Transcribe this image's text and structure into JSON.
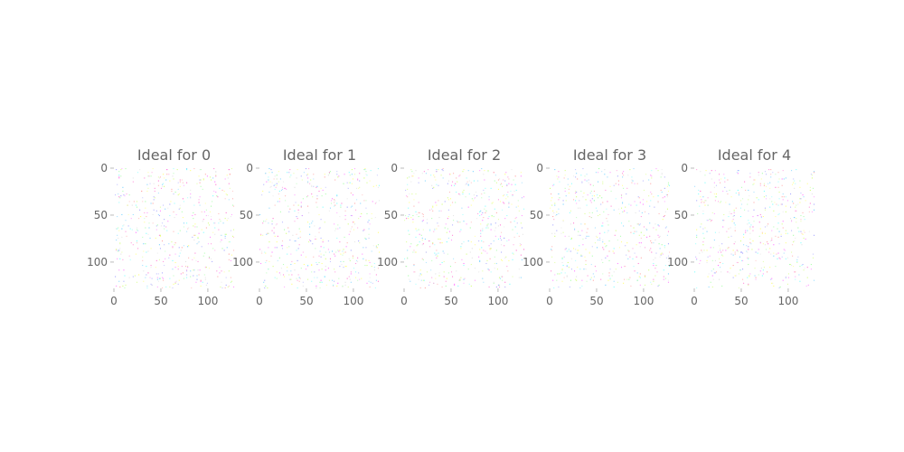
{
  "chart_data": [
    {
      "type": "heatmap",
      "title": "Ideal for 0",
      "image_size": [
        128,
        128
      ],
      "x_ticks": [
        "0",
        "50",
        "100"
      ],
      "y_ticks": [
        "0",
        "50",
        "100"
      ],
      "xlim": [
        0,
        128
      ],
      "ylim": [
        128,
        0
      ],
      "grid": false,
      "seed": 11
    },
    {
      "type": "heatmap",
      "title": "Ideal for 1",
      "image_size": [
        128,
        128
      ],
      "x_ticks": [
        "0",
        "50",
        "100"
      ],
      "y_ticks": [
        "0",
        "50",
        "100"
      ],
      "xlim": [
        0,
        128
      ],
      "ylim": [
        128,
        0
      ],
      "grid": false,
      "seed": 23
    },
    {
      "type": "heatmap",
      "title": "Ideal for 2",
      "image_size": [
        128,
        128
      ],
      "x_ticks": [
        "0",
        "50",
        "100"
      ],
      "y_ticks": [
        "0",
        "50",
        "100"
      ],
      "xlim": [
        0,
        128
      ],
      "ylim": [
        128,
        0
      ],
      "grid": false,
      "seed": 37
    },
    {
      "type": "heatmap",
      "title": "Ideal for 3",
      "image_size": [
        128,
        128
      ],
      "x_ticks": [
        "0",
        "50",
        "100"
      ],
      "y_ticks": [
        "0",
        "50",
        "100"
      ],
      "xlim": [
        0,
        128
      ],
      "ylim": [
        128,
        0
      ],
      "grid": false,
      "seed": 41
    },
    {
      "type": "heatmap",
      "title": "Ideal for 4",
      "image_size": [
        128,
        128
      ],
      "x_ticks": [
        "0",
        "50",
        "100"
      ],
      "y_ticks": [
        "0",
        "50",
        "100"
      ],
      "xlim": [
        0,
        128
      ],
      "ylim": [
        128,
        0
      ],
      "grid": false,
      "seed": 53
    }
  ],
  "colors": {
    "background": "#ffffff",
    "text": "#666666",
    "tick": "#bbbbbb",
    "noise_palette": [
      "#ff66ff",
      "#66ffff",
      "#ffff66",
      "#ff9999",
      "#99ff99",
      "#9999ff",
      "#dddddd",
      "#ff66cc",
      "#66ccff",
      "#ccff66"
    ]
  }
}
